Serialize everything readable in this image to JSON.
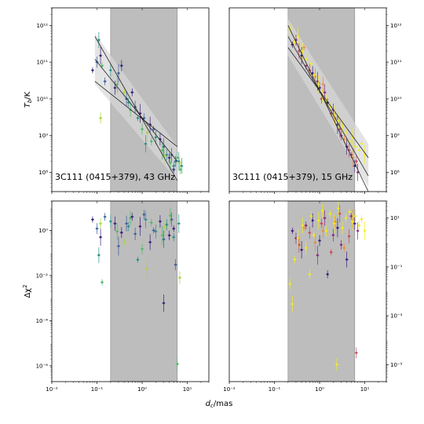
{
  "figure": {
    "xlabel_main": "d",
    "xlabel_sub": "c",
    "xlabel_unit": "/mas",
    "ylabel_top_main": "T",
    "ylabel_top_sub": "b",
    "ylabel_top_unit": "/K",
    "ylabel_bottom_main": "Δχ",
    "ylabel_bottom_sup": "2"
  },
  "chart_data": [
    {
      "id": "tb-43ghz",
      "type": "scatter",
      "label": "3C111 (0415+379), 43 GHz",
      "xscale": "log",
      "yscale": "log",
      "xlim": [
        0.01,
        30
      ],
      "ylim": [
        30000000,
        3000000000000
      ],
      "shaded_region": [
        0.2,
        6
      ],
      "x_ticks": [
        0.01,
        0.1,
        1,
        10
      ],
      "x_tick_labels": [
        "10⁻²",
        "10⁻¹",
        "10⁰",
        "10¹"
      ],
      "y_ticks": [
        100000000,
        1000000000,
        10000000000,
        100000000000,
        1000000000000
      ],
      "y_tick_labels": [
        "10⁸",
        "10⁹",
        "10¹⁰",
        "10¹¹",
        "10¹²"
      ],
      "fit_lines": [
        {
          "x": [
            0.09,
            6
          ],
          "y": [
            500000000000,
            60000000
          ]
        },
        {
          "x": [
            0.09,
            6
          ],
          "y": [
            120000000000,
            200000000
          ]
        },
        {
          "x": [
            0.09,
            6
          ],
          "y": [
            30000000000,
            500000000
          ]
        }
      ],
      "fit_band": {
        "x": [
          0.09,
          6
        ],
        "upper": [
          600000000000,
          500000000
        ],
        "lower": [
          25000000000,
          60000000
        ]
      },
      "series": [
        {
          "color": "#3b1f7a",
          "x": [
            0.08,
            0.12,
            0.25,
            0.35,
            0.6,
            0.9,
            1.5,
            2.5,
            4.0,
            5.0
          ],
          "y": [
            60000000000,
            150000000000,
            20000000000,
            80000000000,
            15000000000,
            4000000000,
            2000000000,
            800000000,
            250000000,
            120000000
          ]
        },
        {
          "color": "#3a5f9e",
          "x": [
            0.1,
            0.15,
            0.3,
            0.45,
            0.7,
            1.1,
            1.8,
            3.0,
            4.5,
            5.5
          ],
          "y": [
            100000000000,
            30000000000,
            50000000000,
            10000000000,
            6000000000,
            3000000000,
            1500000000,
            500000000,
            300000000,
            200000000
          ]
        },
        {
          "color": "#2a8f8a",
          "x": [
            0.11,
            0.2,
            0.5,
            0.8,
            1.2,
            2.0,
            3.5,
            5.0,
            6.5,
            7.5
          ],
          "y": [
            400000000000,
            60000000000,
            8000000000,
            3000000000,
            600000000,
            900000000,
            300000000,
            150000000,
            200000000,
            150000000
          ]
        },
        {
          "color": "#4fb86a",
          "x": [
            0.13,
            0.28,
            0.55,
            1.0,
            1.6,
            2.8,
            4.2,
            6.0,
            7.0
          ],
          "y": [
            80000000000,
            25000000000,
            5000000000,
            1500000000,
            700000000,
            400000000,
            180000000,
            250000000,
            120000000
          ]
        },
        {
          "color": "#a9d43c",
          "x": [
            0.12,
            0.4,
            1.3,
            3.2,
            6.8
          ],
          "y": [
            3000000000,
            15000000000,
            1200000000,
            280000000,
            180000000
          ]
        }
      ]
    },
    {
      "id": "tb-15ghz",
      "type": "scatter",
      "label": "3C111 (0415+379), 15 GHz",
      "xscale": "log",
      "yscale": "log",
      "xlim": [
        0.01,
        30
      ],
      "ylim": [
        30000000,
        3000000000000
      ],
      "shaded_region": [
        0.2,
        6
      ],
      "x_ticks": [
        0.01,
        0.1,
        1,
        10
      ],
      "x_tick_labels": [
        "10⁻²",
        "10⁻¹",
        "10⁰",
        "10¹"
      ],
      "y_ticks": [
        100000000,
        1000000000,
        10000000000,
        100000000000,
        1000000000000
      ],
      "y_tick_labels": [
        "10⁸",
        "10⁹",
        "10¹⁰",
        "10¹¹",
        "10¹²"
      ],
      "fit_lines": [
        {
          "x": [
            0.2,
            12
          ],
          "y": [
            1000000000000,
            30000000
          ]
        },
        {
          "x": [
            0.2,
            12
          ],
          "y": [
            500000000000,
            80000000
          ]
        },
        {
          "x": [
            0.2,
            12
          ],
          "y": [
            250000000000,
            250000000
          ]
        }
      ],
      "fit_band": {
        "x": [
          0.2,
          12
        ],
        "upper": [
          1500000000000,
          600000000
        ],
        "lower": [
          150000000000,
          40000000
        ]
      },
      "series": [
        {
          "color": "#3b1f7a",
          "x": [
            0.25,
            0.4,
            0.7,
            1.0,
            1.5,
            2.5,
            4.0,
            6.0
          ],
          "y": [
            300000000000,
            150000000000,
            50000000000,
            20000000000,
            8000000000,
            2000000000,
            500000000,
            150000000
          ]
        },
        {
          "color": "#8a2b7a",
          "x": [
            0.3,
            0.5,
            0.9,
            1.3,
            2.0,
            3.0,
            5.0,
            7.0
          ],
          "y": [
            400000000000,
            80000000000,
            30000000000,
            15000000000,
            5000000000,
            1000000000,
            300000000,
            100000000
          ]
        },
        {
          "color": "#c74a5a",
          "x": [
            0.35,
            0.6,
            1.1,
            1.8,
            2.8,
            4.5,
            6.5
          ],
          "y": [
            200000000000,
            60000000000,
            10000000000,
            4000000000,
            1500000000,
            400000000,
            200000000
          ]
        },
        {
          "color": "#f08a3a",
          "x": [
            0.45,
            0.8,
            1.2,
            2.2,
            3.5,
            5.5
          ],
          "y": [
            250000000000,
            40000000000,
            25000000000,
            3000000000,
            800000000,
            250000000
          ]
        },
        {
          "color": "#f2ee1a",
          "x": [
            0.22,
            0.28,
            0.33,
            0.42,
            0.5,
            0.65,
            0.75,
            0.95,
            1.15,
            1.4,
            1.7,
            2.1,
            2.6,
            3.2,
            3.8,
            4.6,
            5.4,
            6.2,
            7.5,
            8.5,
            10.0
          ],
          "y": [
            800000000000,
            350000000000,
            500000000000,
            200000000000,
            120000000000,
            90000000000,
            45000000000,
            25000000000,
            12000000000,
            9000000000,
            6000000000,
            3500000000,
            2500000000,
            1800000000,
            1200000000,
            700000000,
            900000000,
            500000000,
            400000000,
            600000000,
            300000000
          ]
        }
      ]
    },
    {
      "id": "chi-43ghz",
      "type": "scatter",
      "label": "",
      "xscale": "log",
      "yscale": "log",
      "xlim": [
        0.01,
        30
      ],
      "ylim": [
        2e-07,
        20
      ],
      "shaded_region": [
        0.2,
        6
      ],
      "x_ticks": [
        0.01,
        0.1,
        1,
        10
      ],
      "x_tick_labels": [
        "10⁻²",
        "10⁻¹",
        "10⁰",
        "10¹"
      ],
      "y_ticks": [
        1e-06,
        0.0001,
        0.01,
        1
      ],
      "y_tick_labels": [
        "10⁻⁶",
        "10⁻⁴",
        "10⁻²",
        "10⁰"
      ],
      "series": [
        {
          "color": "#3b1f7a",
          "x": [
            0.08,
            0.12,
            0.25,
            0.35,
            0.6,
            0.9,
            1.5,
            2.5,
            4.0,
            5.0,
            3.0
          ],
          "y": [
            3,
            0.5,
            2,
            0.8,
            4,
            1.5,
            0.3,
            2.5,
            0.6,
            1.2,
            0.0006
          ]
        },
        {
          "color": "#3a5f9e",
          "x": [
            0.1,
            0.15,
            0.3,
            0.45,
            0.7,
            1.1,
            1.8,
            3.0,
            4.5,
            5.5
          ],
          "y": [
            1.2,
            4,
            0.2,
            2,
            0.7,
            5,
            1,
            0.4,
            3,
            0.03
          ]
        },
        {
          "color": "#2a8f8a",
          "x": [
            0.11,
            0.2,
            0.5,
            0.8,
            1.2,
            2.0,
            3.5,
            5.0,
            6.5
          ],
          "y": [
            0.08,
            2.5,
            1.5,
            0.05,
            3,
            0.9,
            1.8,
            0.5,
            2
          ]
        },
        {
          "color": "#4fb86a",
          "x": [
            0.13,
            0.28,
            0.55,
            1.0,
            1.6,
            2.8,
            4.2,
            6.0
          ],
          "y": [
            0.005,
            0.9,
            3.5,
            0.15,
            2.2,
            0.6,
            4.5,
            1.2e-06
          ]
        },
        {
          "color": "#a9d43c",
          "x": [
            0.12,
            0.4,
            1.3,
            3.2,
            6.8
          ],
          "y": [
            2,
            0.3,
            0.02,
            1.4,
            0.008
          ]
        }
      ]
    },
    {
      "id": "chi-15ghz",
      "type": "scatter",
      "label": "",
      "xscale": "log",
      "yscale": "log",
      "xlim": [
        0.01,
        30
      ],
      "ylim": [
        2e-06,
        50
      ],
      "shaded_region": [
        0.2,
        6
      ],
      "x_ticks": [
        0.01,
        0.1,
        1,
        10
      ],
      "x_tick_labels": [
        "10⁻²",
        "10⁻¹",
        "10⁰",
        "10¹"
      ],
      "y_ticks": [
        1e-05,
        0.001,
        0.1,
        10
      ],
      "y_tick_labels": [
        "10⁻⁵",
        "10⁻³",
        "10⁻¹",
        "10¹"
      ],
      "series": [
        {
          "color": "#3b1f7a",
          "x": [
            0.25,
            0.4,
            0.7,
            1.0,
            1.5,
            2.5,
            4.0,
            6.0
          ],
          "y": [
            3,
            0.5,
            8,
            1.2,
            0.05,
            4,
            0.2,
            6
          ]
        },
        {
          "color": "#8a2b7a",
          "x": [
            0.3,
            0.5,
            0.9,
            1.3,
            2.0,
            3.0,
            5.0,
            7.0
          ],
          "y": [
            1.5,
            5,
            0.3,
            10,
            2,
            0.8,
            12,
            3
          ]
        },
        {
          "color": "#c74a5a",
          "x": [
            0.35,
            0.6,
            1.1,
            1.8,
            2.8,
            4.5,
            6.5
          ],
          "y": [
            0.8,
            2.5,
            6,
            0.4,
            15,
            1.8,
            3e-05
          ]
        },
        {
          "color": "#f08a3a",
          "x": [
            0.45,
            0.8,
            1.2,
            2.2,
            3.5,
            5.5
          ],
          "y": [
            4,
            1,
            3,
            7,
            0.6,
            9
          ]
        },
        {
          "color": "#f2ee1a",
          "x": [
            0.22,
            0.28,
            0.33,
            0.42,
            0.5,
            0.65,
            0.75,
            0.95,
            1.15,
            1.4,
            1.7,
            2.1,
            2.6,
            3.2,
            3.8,
            4.6,
            5.4,
            6.2,
            7.5,
            8.5,
            10.0,
            0.25,
            2.4,
            0.6
          ],
          "y": [
            0.02,
            0.2,
            1.5,
            5,
            0.6,
            12,
            2,
            8,
            20,
            3,
            15,
            6,
            25,
            4,
            10,
            18,
            7,
            12,
            5,
            9,
            3,
            0.003,
            1e-05,
            0.05
          ]
        }
      ]
    }
  ]
}
